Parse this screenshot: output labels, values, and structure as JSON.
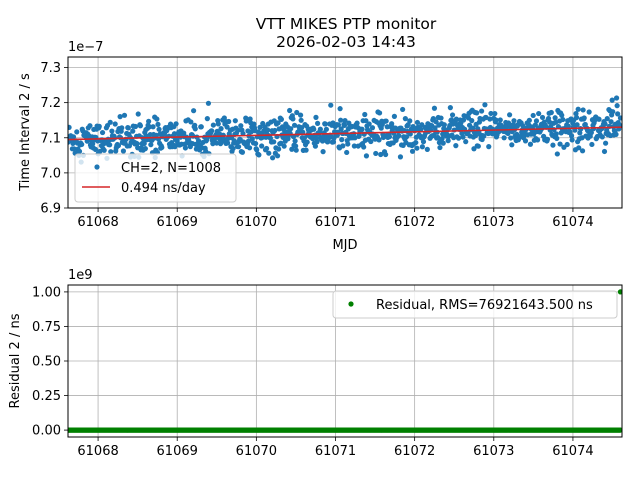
{
  "figure": {
    "title_line1": "VTT MIKES PTP monitor",
    "title_line2": "2026-02-03 14:43"
  },
  "chart_data": [
    {
      "type": "scatter",
      "xlabel": "MJD",
      "ylabel": "Time Interval 2 / s",
      "offset_text": "1e−7",
      "xlim": [
        61067.62,
        61074.62
      ],
      "ylim": [
        6.9,
        7.33
      ],
      "x_ticks": [
        "61068",
        "61069",
        "61070",
        "61071",
        "61072",
        "61073",
        "61074"
      ],
      "x_tick_values": [
        61068,
        61069,
        61070,
        61071,
        61072,
        61073,
        61074
      ],
      "y_ticks": [
        "6.9",
        "7.0",
        "7.1",
        "7.2",
        "7.3"
      ],
      "y_tick_values": [
        6.9,
        7.0,
        7.1,
        7.2,
        7.3
      ],
      "grid": true,
      "legend_position": "lower-left",
      "series": [
        {
          "name": "CH=2, N=1008",
          "kind": "points",
          "color": "#1f77b4",
          "n": 1008,
          "x_start": 61067.62,
          "x_end": 61074.6,
          "baseline_start": 7.095,
          "baseline_end": 7.13,
          "spread": 0.045
        },
        {
          "name": "0.494 ns/day",
          "kind": "line",
          "color": "#d62728",
          "x": [
            61067.62,
            61074.62
          ],
          "y": [
            7.095,
            7.13
          ]
        }
      ]
    },
    {
      "type": "scatter",
      "xlabel": "",
      "ylabel": "Residual 2 / ns",
      "offset_text": "1e9",
      "xlim": [
        61067.62,
        61074.62
      ],
      "ylim": [
        -0.05,
        1.05
      ],
      "x_ticks": [
        "61068",
        "61069",
        "61070",
        "61071",
        "61072",
        "61073",
        "61074"
      ],
      "x_tick_values": [
        61068,
        61069,
        61070,
        61071,
        61072,
        61073,
        61074
      ],
      "y_ticks": [
        "0.00",
        "0.25",
        "0.50",
        "0.75",
        "1.00"
      ],
      "y_tick_values": [
        0.0,
        0.25,
        0.5,
        0.75,
        1.0
      ],
      "grid": true,
      "legend_position": "upper-right",
      "series": [
        {
          "name": "Residual, RMS=76921643.500 ns",
          "kind": "points",
          "color": "#008000",
          "n": 1008,
          "x_start": 61067.62,
          "x_end": 61074.6,
          "baseline_value": 0.0,
          "outlier": {
            "x": 61074.6,
            "y": 1.0
          }
        }
      ]
    }
  ]
}
